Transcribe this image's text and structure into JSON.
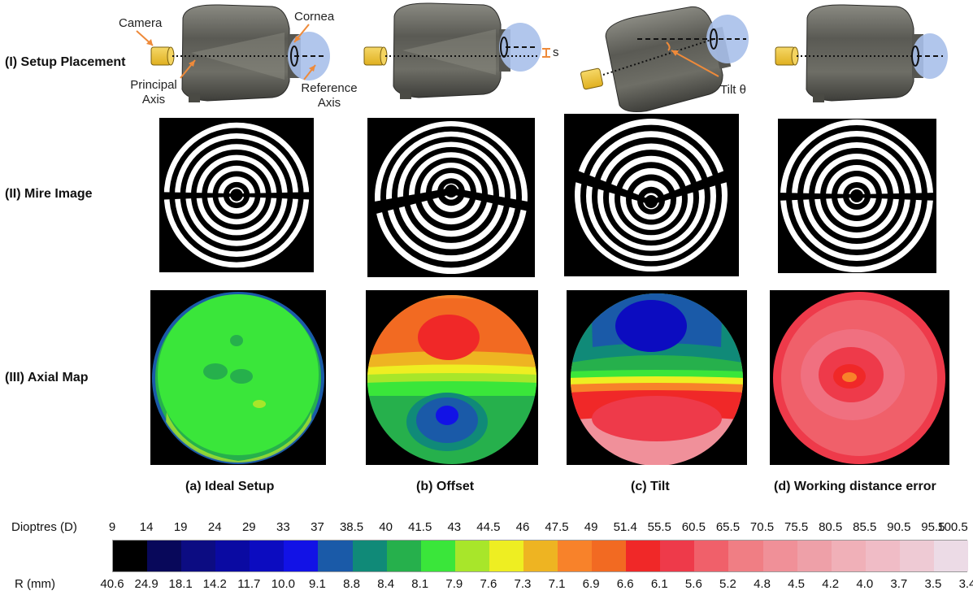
{
  "rows": {
    "setup": "(I) Setup Placement",
    "mire": "(II) Mire Image",
    "axial": "(III) Axial Map"
  },
  "annotations": {
    "camera": "Camera",
    "cornea": "Cornea",
    "principal_axis": "Principal Axis",
    "reference_axis": "Reference Axis",
    "offset_symbol": "s",
    "tilt": "Tilt θ"
  },
  "captions": {
    "a": "(a) Ideal Setup",
    "b": "(b) Offset",
    "c": "(c) Tilt",
    "d": "(d) Working distance error"
  },
  "colorbar": {
    "dioptres_label": "Dioptres (D)",
    "r_label": "R (mm)",
    "dioptres": [
      "9",
      "14",
      "19",
      "24",
      "29",
      "33",
      "37",
      "38.5",
      "40",
      "41.5",
      "43",
      "44.5",
      "46",
      "47.5",
      "49",
      "51.4",
      "55.5",
      "60.5",
      "65.5",
      "70.5",
      "75.5",
      "80.5",
      "85.5",
      "90.5",
      "95.5",
      "100.5"
    ],
    "r_mm": [
      "40.6",
      "24.9",
      "18.1",
      "14.2",
      "11.7",
      "10.0",
      "9.1",
      "8.8",
      "8.4",
      "8.1",
      "7.9",
      "7.6",
      "7.3",
      "7.1",
      "6.9",
      "6.6",
      "6.1",
      "5.6",
      "5.2",
      "4.8",
      "4.5",
      "4.2",
      "4.0",
      "3.7",
      "3.5",
      "3.4"
    ],
    "colors": [
      "#000000",
      "#08085a",
      "#0c0c82",
      "#0a0aa2",
      "#0c0cc0",
      "#1212e6",
      "#1a5aa8",
      "#108a78",
      "#26b04c",
      "#3ae63a",
      "#a8e62a",
      "#eeee22",
      "#eeb422",
      "#f8822a",
      "#f26a22",
      "#f02828",
      "#ee3a4a",
      "#f0606a",
      "#f07e84",
      "#f09098",
      "#eea0a8",
      "#f0b0b8",
      "#f0bcc6",
      "#eecad4",
      "#ecdbe6"
    ]
  }
}
